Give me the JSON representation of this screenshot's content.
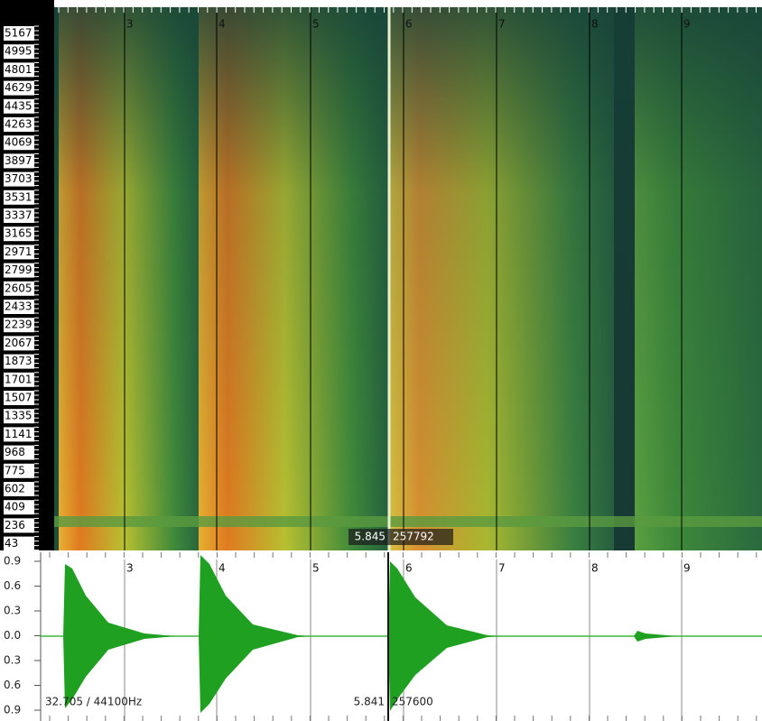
{
  "spectrogram": {
    "freq_labels": [
      "5167",
      "4995",
      "4801",
      "4629",
      "4435",
      "4263",
      "4069",
      "3897",
      "3703",
      "3531",
      "3337",
      "3165",
      "2971",
      "2799",
      "2605",
      "2433",
      "2239",
      "2067",
      "1873",
      "1701",
      "1507",
      "1335",
      "1141",
      "968",
      "775",
      "602",
      "409",
      "236",
      "43"
    ],
    "time_labels": [
      "3",
      "4",
      "5",
      "6",
      "7",
      "8",
      "9"
    ],
    "cursor": {
      "time": "5.845",
      "sample": "257792"
    }
  },
  "waveform": {
    "amp_labels": [
      "0.9",
      "0.6",
      "0.3",
      "0.0",
      "0.3",
      "0.6",
      "0.9"
    ],
    "time_labels": [
      "3",
      "4",
      "5",
      "6",
      "7",
      "8",
      "9"
    ],
    "cursor": {
      "time": "5.841",
      "sample": "257600"
    },
    "info": "32.705 / 44100Hz"
  }
}
